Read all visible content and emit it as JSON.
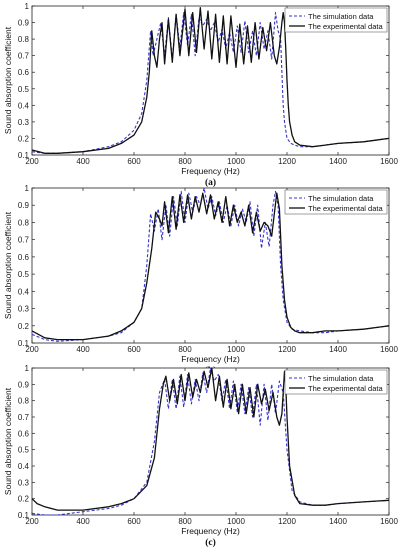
{
  "chart_data": [
    {
      "type": "line",
      "caption": "(a)",
      "xlabel": "Frequency (Hz)",
      "ylabel": "Sound absorption coefficient",
      "xlim": [
        200,
        1600
      ],
      "ylim": [
        0.1,
        1.0
      ],
      "xticks": [
        200,
        400,
        600,
        800,
        1000,
        1200,
        1400,
        1600
      ],
      "yticks": [
        0.1,
        0.2,
        0.3,
        0.4,
        0.5,
        0.6,
        0.7,
        0.8,
        0.9,
        1
      ],
      "grid": false,
      "legend_position": "top-right",
      "series": [
        {
          "name": "The simulation data",
          "style": "dashed",
          "color": "#3333cc",
          "x": [
            200,
            250,
            300,
            400,
            500,
            550,
            600,
            630,
            650,
            665,
            675,
            690,
            705,
            720,
            735,
            750,
            765,
            780,
            795,
            810,
            825,
            840,
            855,
            870,
            885,
            900,
            915,
            930,
            945,
            960,
            975,
            990,
            1005,
            1020,
            1035,
            1050,
            1065,
            1080,
            1095,
            1110,
            1125,
            1140,
            1155,
            1165,
            1175,
            1180,
            1185,
            1190,
            1200,
            1215,
            1230,
            1250,
            1300,
            1350,
            1400,
            1500,
            1600
          ],
          "y": [
            0.12,
            0.11,
            0.11,
            0.12,
            0.15,
            0.18,
            0.25,
            0.35,
            0.55,
            0.85,
            0.7,
            0.8,
            0.9,
            0.7,
            0.93,
            0.68,
            0.95,
            0.75,
            0.96,
            0.76,
            0.95,
            0.7,
            0.93,
            0.88,
            0.92,
            0.85,
            0.9,
            0.78,
            0.86,
            0.74,
            0.84,
            0.72,
            0.88,
            0.72,
            0.91,
            0.72,
            0.85,
            0.7,
            0.9,
            0.74,
            0.85,
            0.68,
            0.96,
            0.85,
            0.8,
            0.6,
            0.4,
            0.3,
            0.2,
            0.17,
            0.16,
            0.15,
            0.15,
            0.16,
            0.17,
            0.18,
            0.2
          ]
        },
        {
          "name": "The experimental data",
          "style": "solid",
          "color": "#111111",
          "x": [
            200,
            250,
            300,
            400,
            500,
            550,
            600,
            630,
            650,
            660,
            670,
            680,
            690,
            700,
            710,
            720,
            735,
            750,
            765,
            780,
            800,
            815,
            830,
            845,
            860,
            875,
            890,
            905,
            920,
            935,
            950,
            965,
            980,
            1000,
            1015,
            1030,
            1045,
            1060,
            1075,
            1090,
            1105,
            1120,
            1135,
            1150,
            1160,
            1170,
            1180,
            1185,
            1190,
            1195,
            1200,
            1205,
            1210,
            1220,
            1230,
            1250,
            1300,
            1350,
            1400,
            1500,
            1600
          ],
          "y": [
            0.13,
            0.11,
            0.11,
            0.12,
            0.14,
            0.17,
            0.22,
            0.3,
            0.45,
            0.6,
            0.85,
            0.7,
            0.63,
            0.8,
            0.9,
            0.65,
            0.92,
            0.66,
            0.95,
            0.7,
            0.98,
            0.7,
            0.96,
            0.72,
            0.99,
            0.74,
            0.97,
            0.68,
            0.95,
            0.66,
            0.94,
            0.65,
            0.94,
            0.63,
            0.89,
            0.65,
            0.88,
            0.66,
            0.9,
            0.68,
            0.87,
            0.73,
            0.9,
            0.7,
            0.65,
            0.75,
            0.9,
            0.96,
            0.9,
            0.75,
            0.55,
            0.4,
            0.3,
            0.22,
            0.18,
            0.16,
            0.15,
            0.16,
            0.17,
            0.18,
            0.2
          ]
        }
      ]
    },
    {
      "type": "line",
      "caption": "(b)",
      "xlabel": "Frequency (Hz)",
      "ylabel": "Sound absorption coefficient",
      "xlim": [
        200,
        1600
      ],
      "ylim": [
        0.1,
        1.0
      ],
      "xticks": [
        200,
        400,
        600,
        800,
        1000,
        1200,
        1400,
        1600
      ],
      "yticks": [
        0.1,
        0.2,
        0.3,
        0.4,
        0.5,
        0.6,
        0.7,
        0.8,
        0.9,
        1
      ],
      "grid": false,
      "legend_position": "top-right",
      "series": [
        {
          "name": "The simulation data",
          "style": "dashed",
          "color": "#3333cc",
          "x": [
            200,
            250,
            300,
            400,
            500,
            550,
            600,
            630,
            650,
            665,
            680,
            695,
            710,
            725,
            740,
            755,
            770,
            785,
            800,
            815,
            830,
            845,
            860,
            875,
            890,
            905,
            920,
            935,
            950,
            965,
            980,
            995,
            1010,
            1025,
            1040,
            1055,
            1070,
            1085,
            1100,
            1115,
            1130,
            1145,
            1155,
            1165,
            1175,
            1185,
            1200,
            1220,
            1250,
            1300,
            1350,
            1400,
            1500,
            1600
          ],
          "y": [
            0.15,
            0.12,
            0.11,
            0.12,
            0.14,
            0.16,
            0.22,
            0.3,
            0.55,
            0.85,
            0.75,
            0.88,
            0.7,
            0.9,
            0.72,
            0.95,
            0.78,
            0.98,
            0.8,
            0.97,
            0.86,
            0.95,
            0.9,
            1.0,
            0.88,
            0.95,
            0.84,
            0.92,
            0.8,
            0.9,
            0.78,
            0.9,
            0.78,
            0.88,
            0.8,
            0.92,
            0.72,
            0.9,
            0.65,
            0.8,
            0.66,
            0.9,
            0.98,
            0.9,
            0.55,
            0.35,
            0.22,
            0.18,
            0.17,
            0.16,
            0.16,
            0.17,
            0.18,
            0.2
          ]
        },
        {
          "name": "The experimental data",
          "style": "solid",
          "color": "#111111",
          "x": [
            200,
            250,
            300,
            400,
            500,
            550,
            600,
            630,
            650,
            670,
            685,
            700,
            710,
            720,
            735,
            750,
            765,
            780,
            795,
            810,
            825,
            840,
            855,
            870,
            885,
            900,
            915,
            930,
            945,
            960,
            975,
            990,
            1005,
            1020,
            1035,
            1050,
            1065,
            1080,
            1095,
            1110,
            1125,
            1140,
            1150,
            1160,
            1170,
            1180,
            1190,
            1200,
            1215,
            1230,
            1250,
            1300,
            1350,
            1400,
            1500,
            1600
          ],
          "y": [
            0.17,
            0.13,
            0.12,
            0.12,
            0.14,
            0.17,
            0.22,
            0.3,
            0.45,
            0.65,
            0.86,
            0.82,
            0.78,
            0.92,
            0.74,
            0.95,
            0.76,
            0.96,
            0.8,
            0.96,
            0.82,
            0.95,
            0.86,
            0.97,
            0.85,
            0.96,
            0.82,
            0.92,
            0.8,
            0.95,
            0.78,
            0.9,
            0.8,
            0.86,
            0.78,
            0.9,
            0.74,
            0.86,
            0.75,
            0.8,
            0.78,
            0.72,
            0.85,
            0.97,
            0.88,
            0.55,
            0.35,
            0.25,
            0.19,
            0.17,
            0.16,
            0.16,
            0.17,
            0.17,
            0.18,
            0.2
          ]
        }
      ]
    },
    {
      "type": "line",
      "caption": "(c)",
      "xlabel": "Frequency (Hz)",
      "ylabel": "Sound absorption coefficient",
      "xlim": [
        200,
        1600
      ],
      "ylim": [
        0.1,
        1.0
      ],
      "xticks": [
        200,
        400,
        600,
        800,
        1000,
        1200,
        1400,
        1600
      ],
      "yticks": [
        0.1,
        0.2,
        0.3,
        0.4,
        0.5,
        0.6,
        0.7,
        0.8,
        0.9,
        1
      ],
      "grid": false,
      "legend_position": "top-right",
      "series": [
        {
          "name": "The simulation data",
          "style": "dashed",
          "color": "#3333cc",
          "x": [
            200,
            250,
            300,
            400,
            500,
            550,
            600,
            650,
            680,
            700,
            720,
            735,
            750,
            765,
            780,
            795,
            810,
            825,
            840,
            855,
            870,
            885,
            900,
            915,
            930,
            945,
            960,
            975,
            990,
            1005,
            1020,
            1035,
            1050,
            1065,
            1080,
            1095,
            1110,
            1125,
            1140,
            1155,
            1170,
            1185,
            1200,
            1220,
            1250,
            1300,
            1350,
            1400,
            1500,
            1600
          ],
          "y": [
            0.11,
            0.1,
            0.1,
            0.12,
            0.14,
            0.16,
            0.2,
            0.3,
            0.55,
            0.85,
            0.93,
            0.75,
            0.93,
            0.75,
            0.95,
            0.76,
            0.96,
            0.78,
            0.93,
            0.8,
            0.97,
            0.85,
            1.0,
            0.92,
            0.96,
            0.8,
            0.93,
            0.75,
            0.92,
            0.73,
            0.9,
            0.72,
            0.88,
            0.7,
            0.9,
            0.65,
            0.9,
            0.68,
            0.9,
            0.72,
            0.92,
            0.85,
            0.5,
            0.25,
            0.18,
            0.16,
            0.16,
            0.17,
            0.18,
            0.19
          ]
        },
        {
          "name": "The experimental data",
          "style": "solid",
          "color": "#111111",
          "x": [
            200,
            220,
            250,
            300,
            400,
            500,
            550,
            600,
            650,
            680,
            700,
            715,
            725,
            740,
            755,
            770,
            785,
            800,
            815,
            830,
            845,
            860,
            875,
            890,
            905,
            920,
            935,
            950,
            965,
            980,
            995,
            1010,
            1025,
            1040,
            1055,
            1070,
            1085,
            1100,
            1115,
            1130,
            1145,
            1160,
            1170,
            1180,
            1185,
            1190,
            1195,
            1200,
            1210,
            1230,
            1250,
            1300,
            1350,
            1400,
            1500,
            1600
          ],
          "y": [
            0.2,
            0.17,
            0.15,
            0.13,
            0.13,
            0.15,
            0.17,
            0.2,
            0.28,
            0.45,
            0.75,
            0.9,
            0.95,
            0.8,
            0.93,
            0.78,
            0.96,
            0.8,
            0.97,
            0.82,
            0.93,
            0.85,
            0.98,
            0.88,
            1.0,
            0.8,
            0.95,
            0.76,
            0.93,
            0.75,
            0.9,
            0.72,
            0.9,
            0.72,
            0.88,
            0.7,
            0.9,
            0.78,
            0.87,
            0.74,
            0.85,
            0.7,
            0.65,
            0.72,
            0.85,
            0.98,
            0.9,
            0.7,
            0.4,
            0.22,
            0.17,
            0.16,
            0.16,
            0.17,
            0.18,
            0.19
          ]
        }
      ]
    }
  ]
}
